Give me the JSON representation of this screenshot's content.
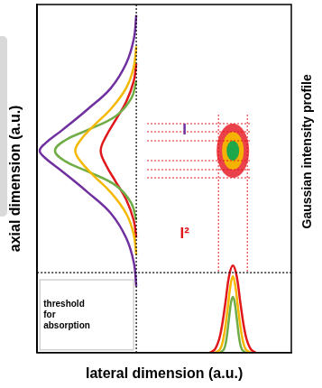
{
  "chart_data": {
    "type": "line",
    "x_label": "lateral dimension (a.u.)",
    "y_label": "axial dimension (a.u.)",
    "right_label": "Gaussian intensity profile",
    "xlim": [
      0,
      100
    ],
    "ylim": [
      0,
      100
    ],
    "xticks": [],
    "yticks": [],
    "tick_labels": false,
    "grid": false,
    "divider_x": 39,
    "threshold": {
      "value": 23,
      "label": [
        "threshold",
        "for",
        "absorption"
      ]
    },
    "spot": {
      "x": 77,
      "y": 58,
      "colors": [
        "#e8202a",
        "#f5b800",
        "#1fa84a"
      ]
    },
    "series": [
      {
        "name": "I",
        "color": "#7030a0",
        "x": [
          39,
          38,
          35,
          29,
          20,
          10,
          3,
          1,
          3,
          10,
          20,
          29,
          35,
          38,
          39
        ],
        "values": [
          97,
          90,
          83,
          76,
          70,
          64,
          60,
          58,
          56,
          52,
          46,
          40,
          33,
          26,
          19
        ]
      },
      {
        "color": "#f5b800",
        "x": [
          39,
          38,
          35,
          29,
          22,
          17,
          15,
          17,
          22,
          29,
          35,
          38,
          39
        ],
        "values": [
          88,
          82,
          76,
          70,
          65,
          61,
          58,
          55,
          51,
          46,
          40,
          34,
          28
        ]
      },
      {
        "color": "#70ad47",
        "x": [
          39,
          37,
          31,
          20,
          11,
          7,
          11,
          20,
          31,
          37,
          39
        ],
        "values": [
          78,
          73,
          68,
          64,
          61,
          58,
          55,
          52,
          48,
          43,
          38
        ]
      },
      {
        "name": "I²",
        "color": "#e0181c",
        "x": [
          39,
          38,
          35,
          31,
          27,
          25,
          27,
          31,
          35,
          38,
          39
        ],
        "values": [
          83,
          78,
          72,
          67,
          62,
          58,
          54,
          49,
          44,
          38,
          33
        ]
      },
      {
        "color": "#e0181c",
        "x": [
          68,
          70,
          72,
          74,
          75.5,
          77,
          78.5,
          80,
          82,
          84,
          86
        ],
        "values": [
          0,
          1,
          5,
          14,
          22,
          25,
          22,
          14,
          5,
          1,
          0
        ]
      },
      {
        "color": "#f5b800",
        "x": [
          70,
          72,
          73.5,
          75,
          76,
          77,
          78,
          79,
          80.5,
          82,
          84
        ],
        "values": [
          0,
          1,
          5,
          13,
          19,
          22,
          19,
          13,
          5,
          1,
          0
        ]
      },
      {
        "color": "#70ad47",
        "x": [
          72,
          73.5,
          74.5,
          75.5,
          76.3,
          77,
          77.7,
          78.5,
          79.5,
          80.5,
          82
        ],
        "values": [
          0,
          1,
          4,
          10,
          14.5,
          16,
          14.5,
          10,
          4,
          1,
          0
        ]
      }
    ]
  }
}
